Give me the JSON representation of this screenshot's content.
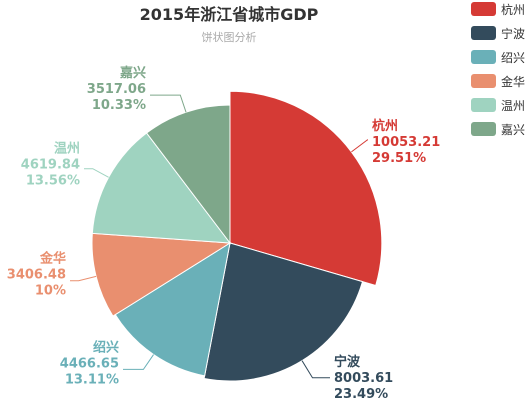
{
  "chart_data": {
    "type": "pie",
    "title": "2015年浙江省城市GDP",
    "subtitle": "饼状图分析",
    "legend_position": "right",
    "slices": [
      {
        "name": "杭州",
        "value": 10053.21,
        "percent": "29.51%",
        "color": "#d53a35"
      },
      {
        "name": "宁波",
        "value": 8003.61,
        "percent": "23.49%",
        "color": "#334b5c"
      },
      {
        "name": "绍兴",
        "value": 4466.65,
        "percent": "13.11%",
        "color": "#6ab0b8"
      },
      {
        "name": "金华",
        "value": 3406.48,
        "percent": "10%",
        "color": "#e98f6f"
      },
      {
        "name": "温州",
        "value": 4619.84,
        "percent": "13.56%",
        "color": "#9fd3c0"
      },
      {
        "name": "嘉兴",
        "value": 3517.06,
        "percent": "10.33%",
        "color": "#7ea78a"
      }
    ]
  }
}
